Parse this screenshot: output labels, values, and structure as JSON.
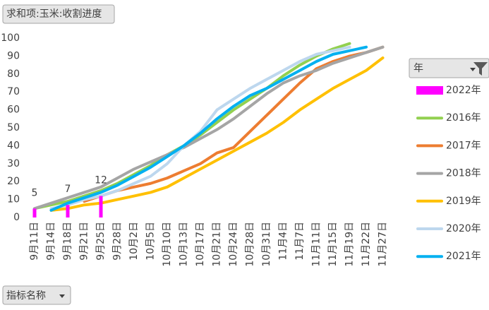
{
  "chart_data": {
    "type": "line",
    "field_button": "求和项:玉米:收割进度",
    "legend_title": "年",
    "filter_button": "指标名称",
    "legend": "right",
    "grid": false,
    "ylim": [
      0,
      100
    ],
    "yticks": [
      0,
      10,
      20,
      30,
      40,
      50,
      60,
      70,
      80,
      90,
      100
    ],
    "categories": [
      "9月11日",
      "9月14日",
      "9月18日",
      "9月21日",
      "9月25日",
      "9月28日",
      "10月2日",
      "10月5日",
      "10月10日",
      "10月13日",
      "10月17日",
      "10月21日",
      "10月24日",
      "10月28日",
      "10月31日",
      "11月4日",
      "11月7日",
      "11月11日",
      "11月15日",
      "11月19日",
      "11月22日",
      "11月27日"
    ],
    "series": [
      {
        "name": "2022年",
        "color": "#ff00ff",
        "mark": "bar",
        "data_labels": true,
        "values": [
          5,
          null,
          7,
          null,
          12,
          null,
          null,
          null,
          null,
          null,
          null,
          null,
          null,
          null,
          null,
          null,
          null,
          null,
          null,
          null,
          null,
          null
        ]
      },
      {
        "name": "2016年",
        "color": "#92d050",
        "values": [
          5,
          7,
          9,
          12,
          15,
          19,
          24,
          29,
          35,
          40,
          46,
          53,
          60,
          66,
          72,
          79,
          85,
          90,
          94,
          97,
          null,
          null
        ]
      },
      {
        "name": "2017年",
        "color": "#ed7d31",
        "values": [
          null,
          null,
          null,
          9,
          12,
          15,
          17,
          19,
          22,
          26,
          30,
          36,
          39,
          48,
          57,
          66,
          75,
          83,
          87,
          90,
          92,
          95
        ]
      },
      {
        "name": "2018年",
        "color": "#a5a5a5",
        "values": [
          5,
          8,
          11,
          14,
          17,
          22,
          27,
          31,
          35,
          39,
          44,
          49,
          55,
          62,
          69,
          75,
          79,
          82,
          86,
          89,
          92,
          95
        ]
      },
      {
        "name": "2019年",
        "color": "#ffc000",
        "values": [
          null,
          4,
          5,
          7,
          8,
          10,
          12,
          14,
          17,
          22,
          27,
          32,
          37,
          42,
          47,
          53,
          60,
          66,
          72,
          77,
          82,
          89
        ]
      },
      {
        "name": "2020年",
        "color": "#bdd7ee",
        "values": [
          null,
          5,
          7,
          10,
          12,
          15,
          19,
          23,
          30,
          40,
          48,
          60,
          66,
          72,
          77,
          82,
          87,
          91,
          93,
          95,
          null,
          null
        ]
      },
      {
        "name": "2021年",
        "color": "#00b0f0",
        "values": [
          null,
          4,
          8,
          11,
          14,
          18,
          23,
          28,
          34,
          40,
          47,
          55,
          62,
          68,
          72,
          77,
          82,
          87,
          91,
          93,
          95,
          null
        ]
      }
    ]
  }
}
